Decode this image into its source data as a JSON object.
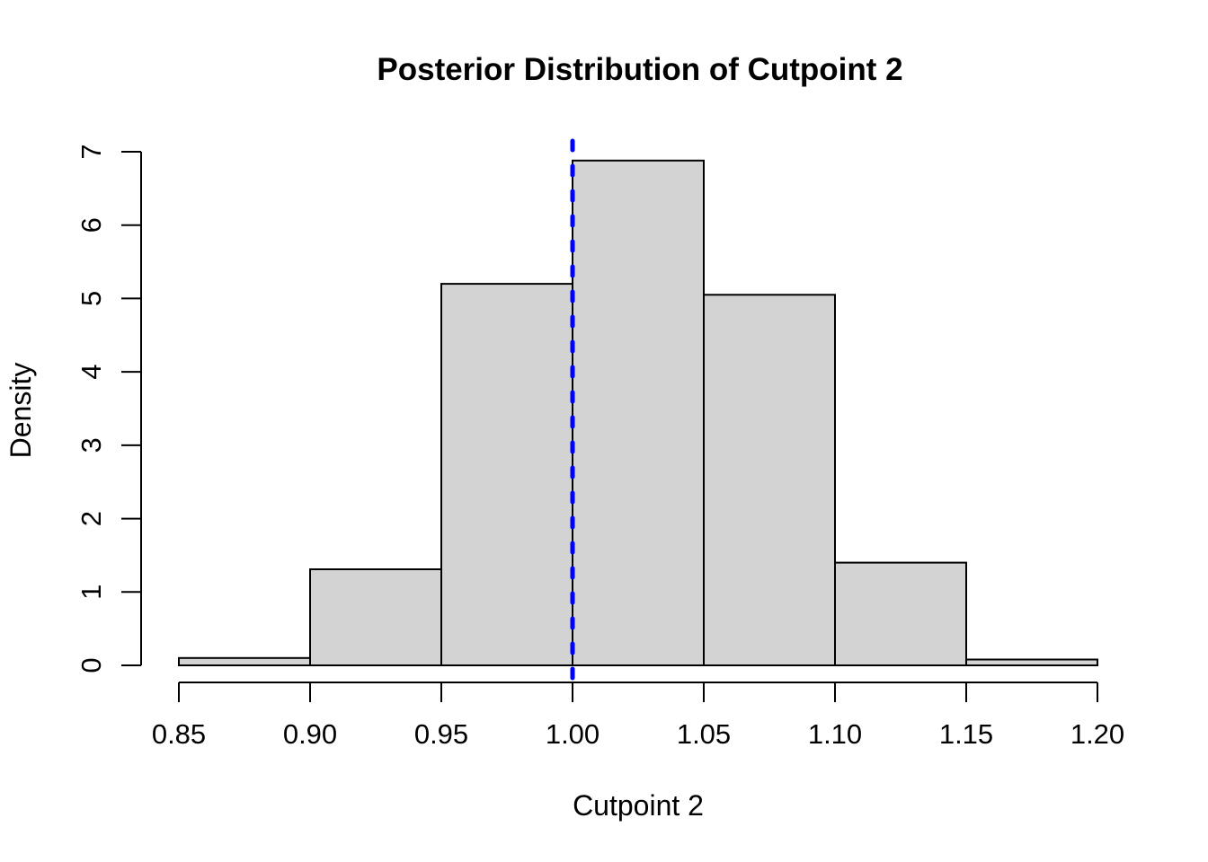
{
  "chart_data": {
    "type": "histogram",
    "title": "Posterior Distribution of Cutpoint 2",
    "xlabel": "Cutpoint 2",
    "ylabel": "Density",
    "bin_edges": [
      0.85,
      0.9,
      0.95,
      1.0,
      1.05,
      1.1,
      1.15,
      1.2
    ],
    "densities": [
      0.1,
      1.31,
      5.2,
      6.88,
      5.05,
      1.4,
      0.08
    ],
    "x_ticks": [
      0.85,
      0.9,
      0.95,
      1.0,
      1.05,
      1.1,
      1.15,
      1.2
    ],
    "x_tick_labels": [
      "0.85",
      "0.90",
      "0.95",
      "1.00",
      "1.05",
      "1.10",
      "1.15",
      "1.20"
    ],
    "y_ticks": [
      0,
      1,
      2,
      3,
      4,
      5,
      6,
      7
    ],
    "y_tick_labels": [
      "0",
      "1",
      "2",
      "3",
      "4",
      "5",
      "6",
      "7"
    ],
    "xlim": [
      0.85,
      1.2
    ],
    "ylim": [
      0,
      7
    ],
    "grid": false,
    "legend": null,
    "reference_line": {
      "x": 1.0,
      "color": "#0000ff",
      "style": "dashed",
      "width": 5
    },
    "colors": {
      "bar_fill": "#d3d3d3",
      "bar_border": "#000000",
      "axis": "#000000",
      "text": "#000000",
      "background": "#ffffff"
    }
  }
}
